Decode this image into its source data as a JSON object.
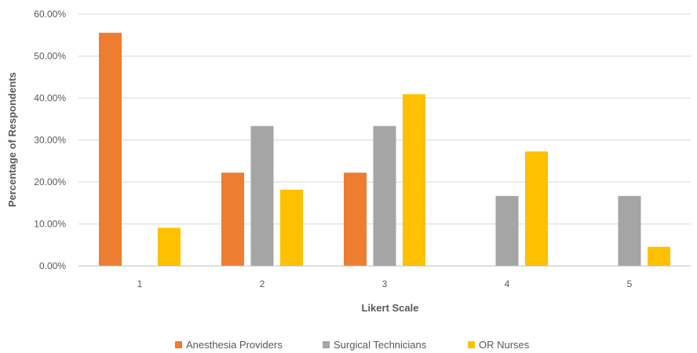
{
  "chart_data": {
    "type": "bar",
    "categories": [
      "1",
      "2",
      "3",
      "4",
      "5"
    ],
    "series": [
      {
        "name": "Anesthesia Providers",
        "color": "#ED7D31",
        "values": [
          55.56,
          22.22,
          22.22,
          0,
          0
        ]
      },
      {
        "name": "Surgical Technicians",
        "color": "#A5A5A5",
        "values": [
          0,
          33.33,
          33.33,
          16.67,
          16.67
        ]
      },
      {
        "name": "OR Nurses",
        "color": "#FFC000",
        "values": [
          9.09,
          18.18,
          40.91,
          27.27,
          4.55
        ]
      }
    ],
    "xlabel": "Likert Scale",
    "ylabel": "Percentage of Respondents",
    "ylim": [
      0,
      60
    ],
    "yticks": [
      "0.00%",
      "10.00%",
      "20.00%",
      "30.00%",
      "40.00%",
      "50.00%",
      "60.00%"
    ],
    "grid": true,
    "legend_position": "bottom"
  }
}
